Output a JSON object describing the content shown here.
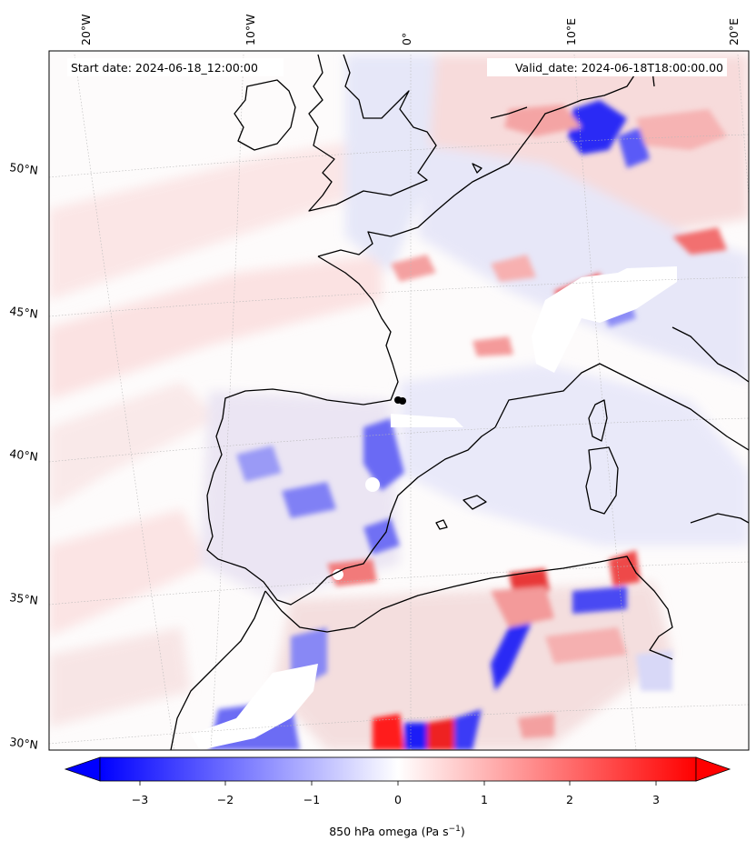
{
  "header": {
    "start_date": "Start date: 2024-06-18_12:00:00",
    "valid_date": "Valid_date: 2024-06-18T18:00:00.00"
  },
  "map": {
    "lon_labels": [
      "20°W",
      "10°W",
      "0°",
      "10°E",
      "20°E"
    ],
    "lat_labels": [
      "50°N",
      "45°N",
      "40°N",
      "35°N",
      "30°N"
    ],
    "coastline_color": "#000000",
    "gridline_style": "dotted"
  },
  "colorbar": {
    "ticks": [
      "−3",
      "−2",
      "−1",
      "0",
      "1",
      "2",
      "3"
    ],
    "label_prefix": "850 hPa omega (Pa s",
    "label_exponent": "−1",
    "label_suffix": ")",
    "colormap": "bwr",
    "vmin": -3.7,
    "vmax": 3.7,
    "extend": "both",
    "colors": {
      "negative": "#0000ff",
      "zero": "#ffffff",
      "positive": "#ff0000"
    }
  }
}
